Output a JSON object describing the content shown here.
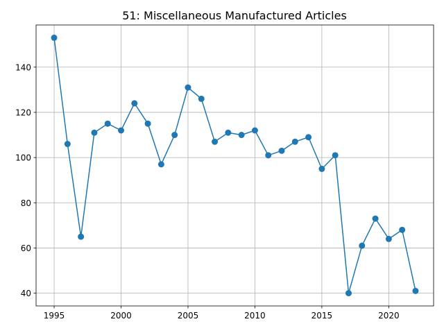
{
  "chart_data": {
    "type": "line",
    "title": "51: Miscellaneous Manufactured Articles",
    "xlabel": "",
    "ylabel": "",
    "x": [
      1995,
      1996,
      1997,
      1998,
      1999,
      2000,
      2001,
      2002,
      2003,
      2004,
      2005,
      2006,
      2007,
      2008,
      2009,
      2010,
      2011,
      2012,
      2013,
      2014,
      2015,
      2016,
      2017,
      2018,
      2019,
      2020,
      2021,
      2022
    ],
    "series": [
      {
        "values": [
          153,
          106,
          65,
          111,
          115,
          112,
          124,
          115,
          97,
          110,
          131,
          126,
          107,
          111,
          110,
          112,
          101,
          103,
          107,
          109,
          95,
          101,
          40,
          61,
          73,
          64,
          68,
          41
        ],
        "color": "#1f77b4",
        "marker": "circle"
      }
    ],
    "xlim": [
      1993.65,
      2023.35
    ],
    "ylim": [
      34.35,
      158.65
    ],
    "xticks": [
      1995,
      2000,
      2005,
      2010,
      2015,
      2020
    ],
    "xtick_labels": [
      "1995",
      "2000",
      "2005",
      "2010",
      "2015",
      "2020"
    ],
    "yticks": [
      40,
      60,
      80,
      100,
      120,
      140
    ],
    "ytick_labels": [
      "40",
      "60",
      "80",
      "100",
      "120",
      "140"
    ],
    "grid": true,
    "legend": "none"
  }
}
